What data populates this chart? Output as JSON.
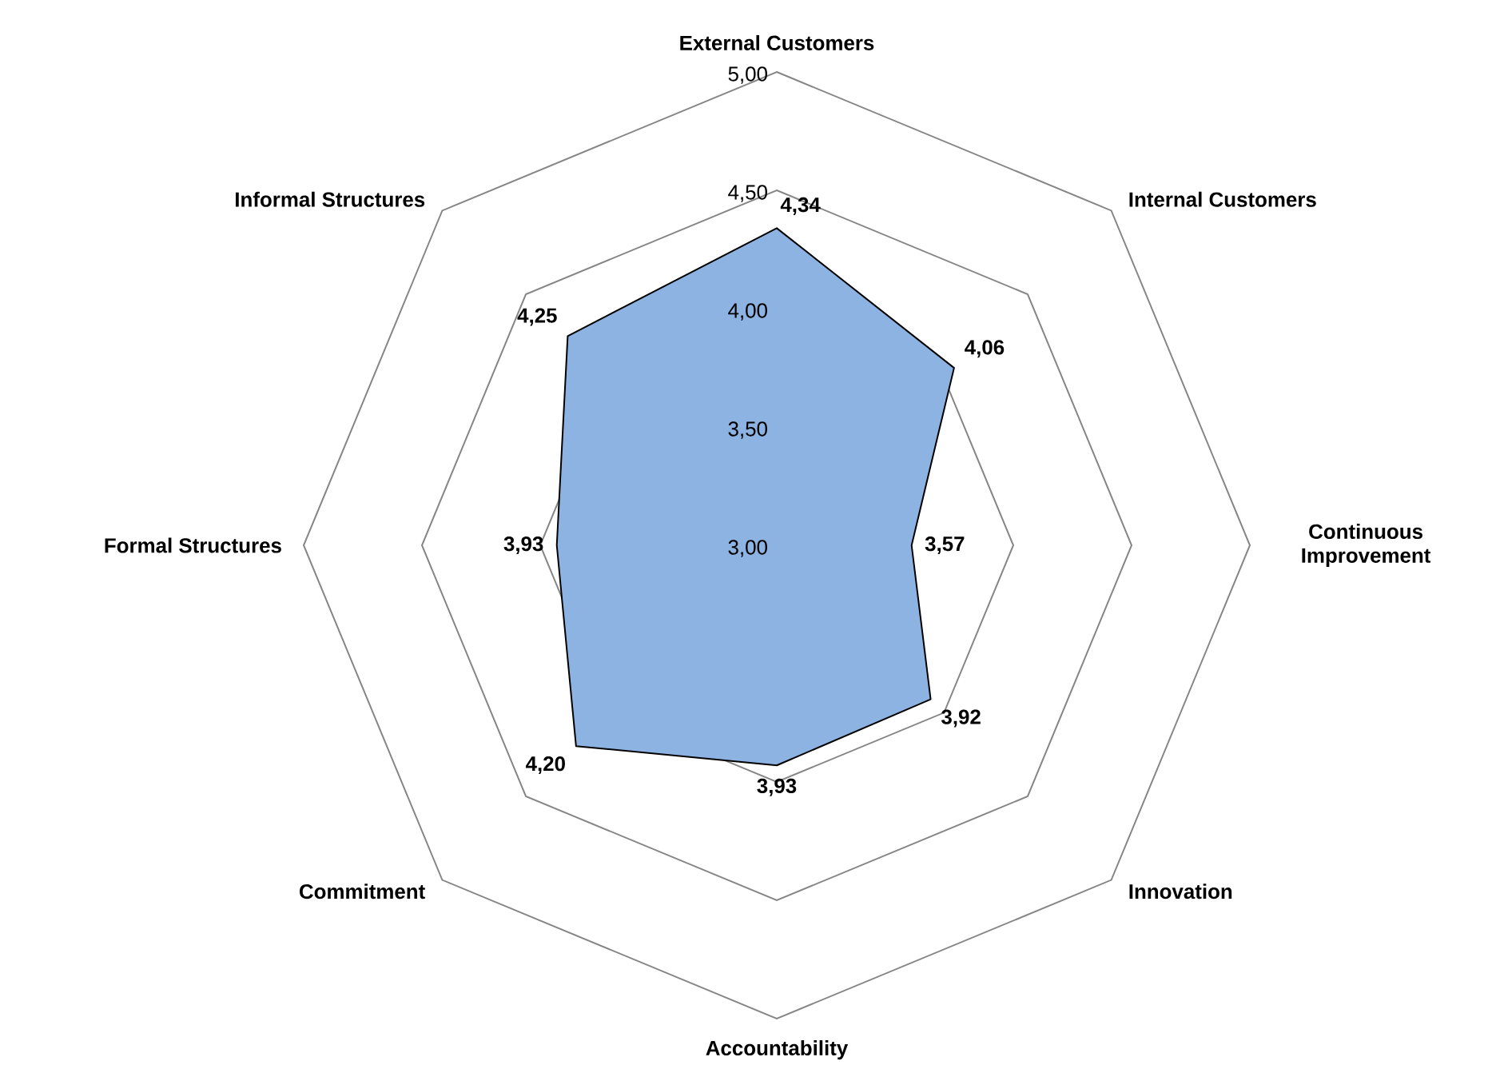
{
  "chart_data": {
    "type": "radar",
    "categories": [
      "External Customers",
      "Internal Customers",
      "Continuous Improvement",
      "Innovation",
      "Accountability",
      "Commitment",
      "Formal Structures",
      "Informal Structures"
    ],
    "series": [
      {
        "color": "#8db3e2",
        "values": [
          4.34,
          4.06,
          3.57,
          3.92,
          3.93,
          4.2,
          3.93,
          4.25
        ],
        "value_labels": [
          "4,34",
          "4,06",
          "3,57",
          "3,92",
          "3,93",
          "4,20",
          "3,93",
          "4,25"
        ]
      }
    ],
    "ylim": [
      3,
      5
    ],
    "yticks": [
      {
        "value": 3,
        "label": "3,00"
      },
      {
        "value": 3.5,
        "label": "3,50"
      },
      {
        "value": 4,
        "label": "4,00"
      },
      {
        "value": 4.5,
        "label": "4,50"
      },
      {
        "value": 5,
        "label": "5,00"
      }
    ],
    "grid": true
  }
}
